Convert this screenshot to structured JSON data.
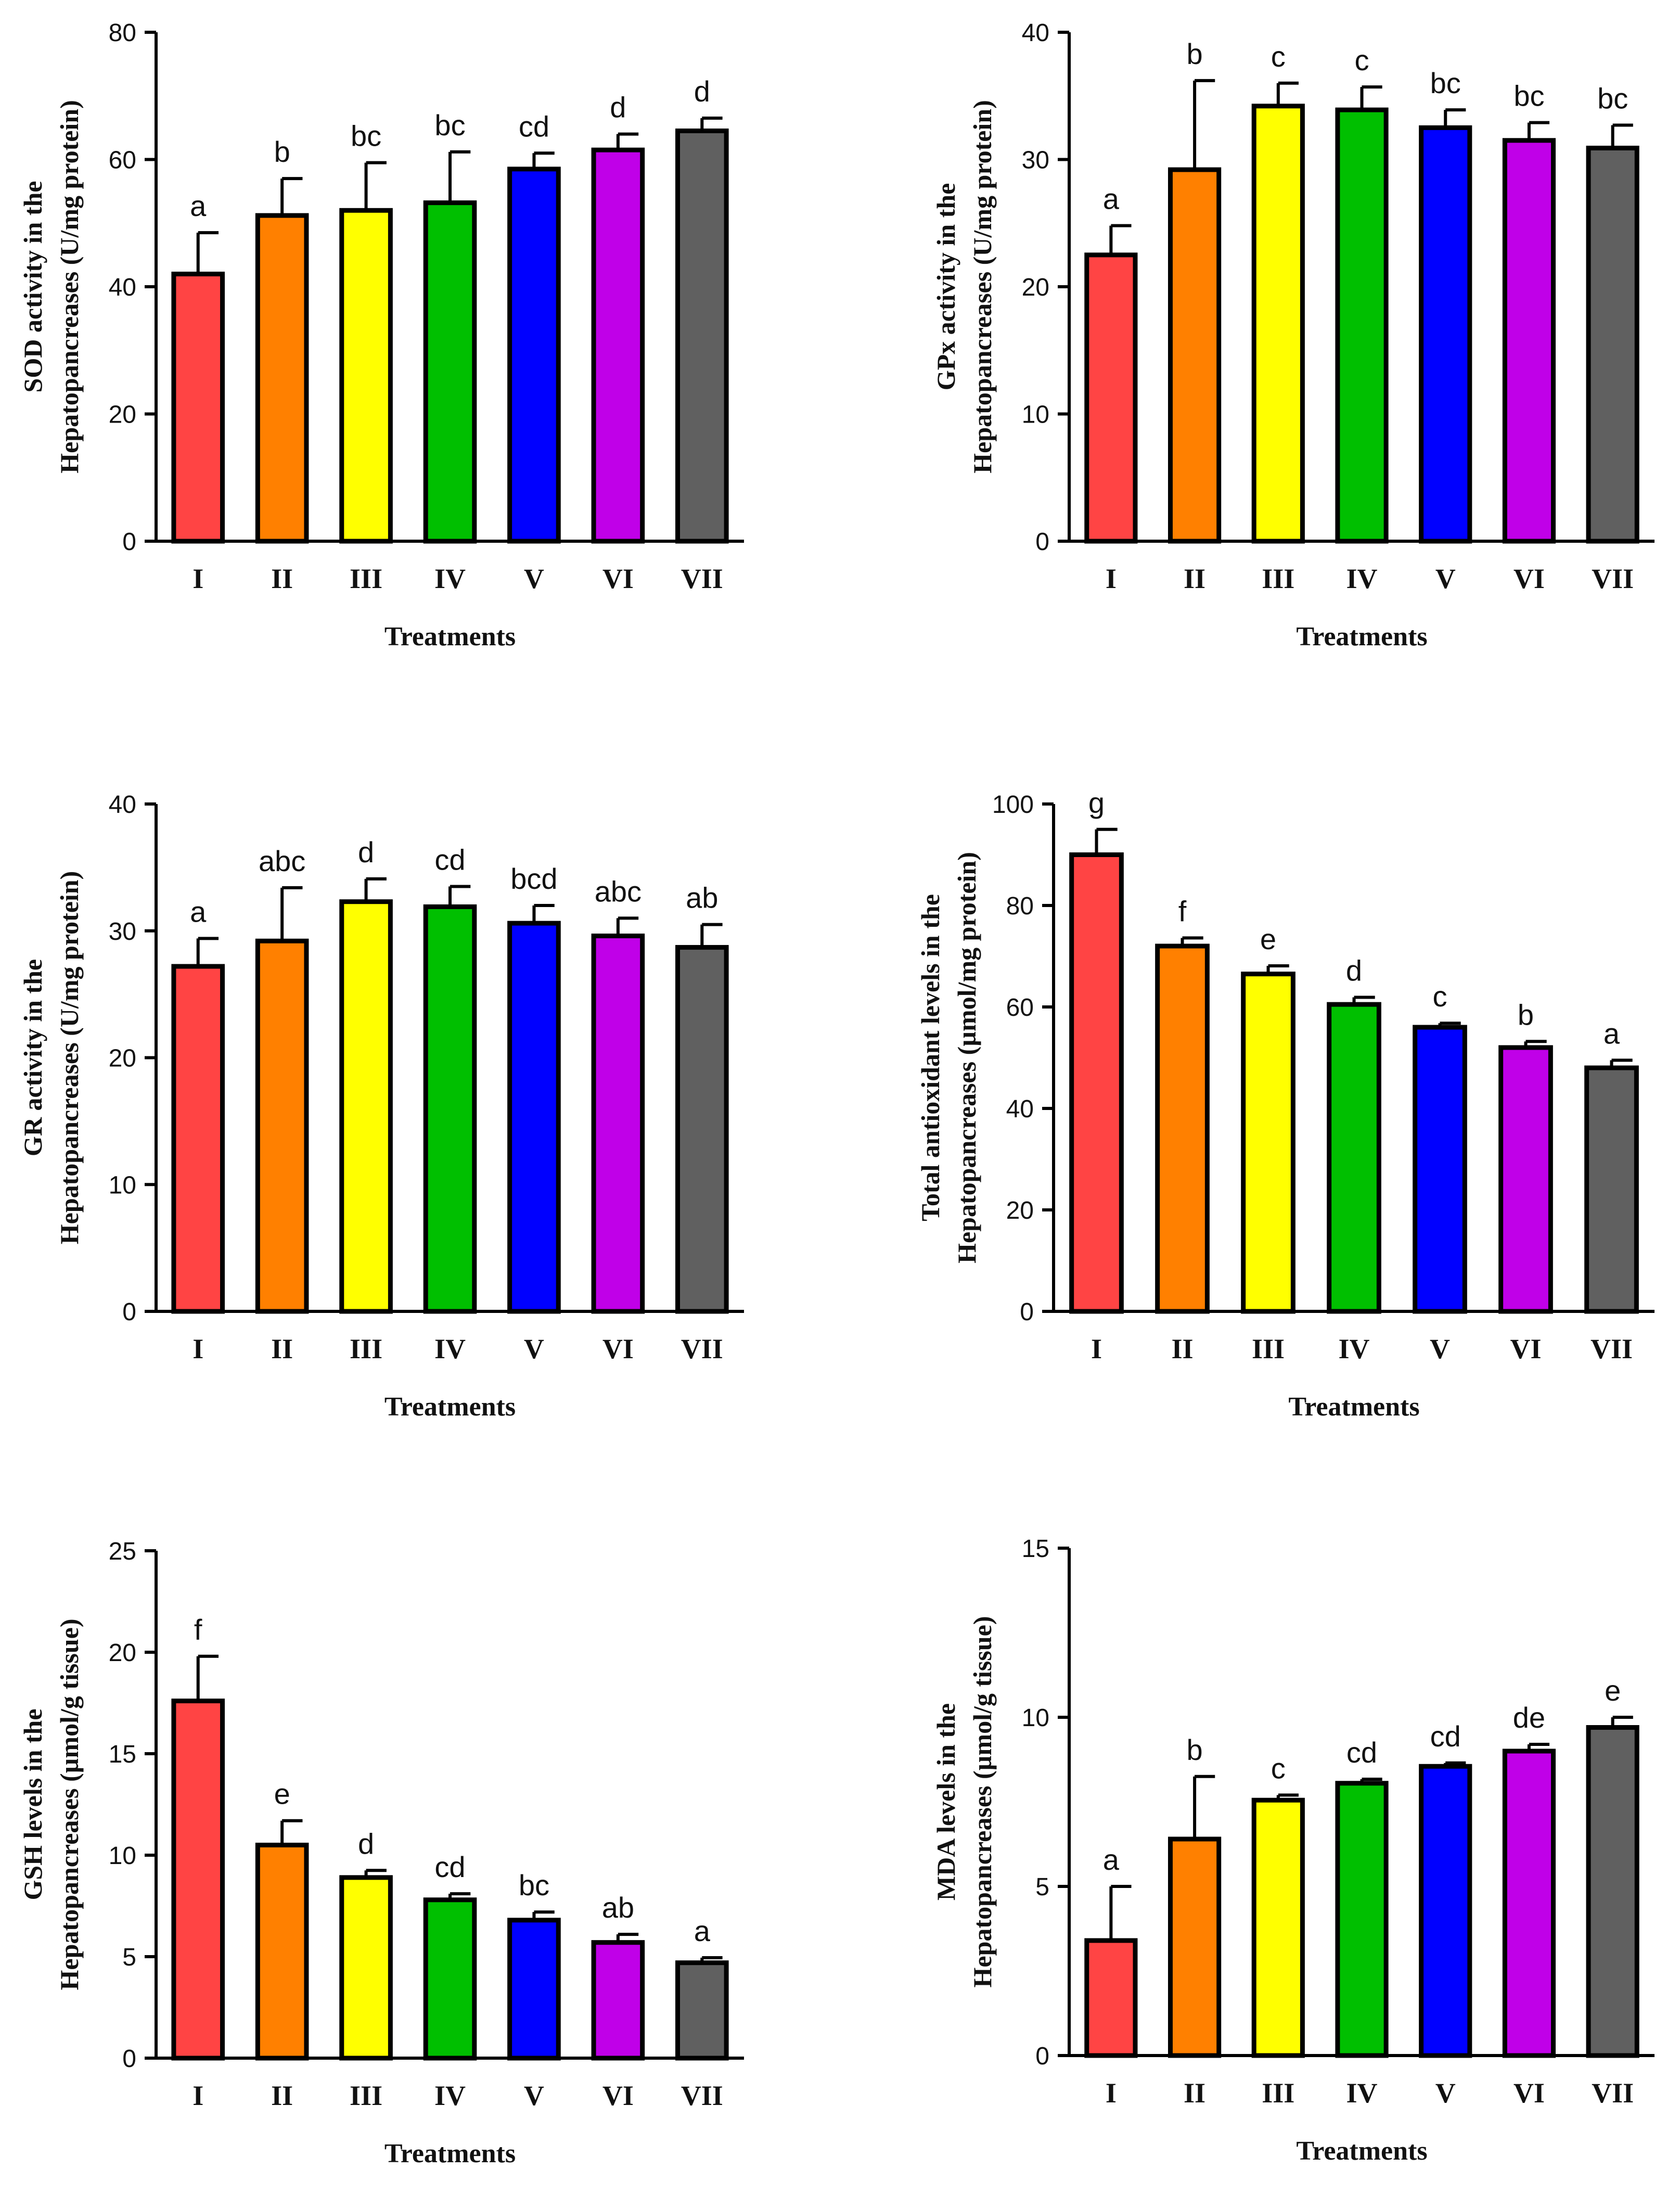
{
  "figure": {
    "panel_count": 6
  },
  "chart_data": [
    {
      "type": "bar",
      "title": "",
      "ylabel_line1": "SOD activity in the",
      "ylabel_line2": "Hepatopancreases (U/mg protein)",
      "xlabel": "Treatments",
      "categories": [
        "I",
        "II",
        "III",
        "IV",
        "V",
        "VI",
        "VII"
      ],
      "values": [
        42,
        51.2,
        52,
        53.2,
        58.5,
        61.5,
        64.5
      ],
      "errors": [
        6.5,
        5.8,
        7.5,
        8.0,
        2.5,
        2.5,
        2.0
      ],
      "letters": [
        "a",
        "b",
        "bc",
        "bc",
        "cd",
        "d",
        "d"
      ],
      "ylim": [
        0,
        80
      ],
      "yticks": [
        0,
        20,
        40,
        60,
        80
      ],
      "colors": [
        "#ff4444",
        "#ff8000",
        "#ffff00",
        "#00bf00",
        "#0000ff",
        "#c000e8",
        "#606060"
      ]
    },
    {
      "type": "bar",
      "title": "",
      "ylabel_line1": "GPx activity in the",
      "ylabel_line2": "Hepatopancreases (U/mg protein)",
      "xlabel": "Treatments",
      "categories": [
        "I",
        "II",
        "III",
        "IV",
        "V",
        "VI",
        "VII"
      ],
      "values": [
        22.5,
        29.2,
        34.2,
        33.9,
        32.5,
        31.5,
        30.9
      ],
      "errors": [
        2.3,
        7.0,
        1.8,
        1.8,
        1.4,
        1.4,
        1.8
      ],
      "letters": [
        "a",
        "b",
        "c",
        "c",
        "bc",
        "bc",
        "bc"
      ],
      "ylim": [
        0,
        40
      ],
      "yticks": [
        0,
        10,
        20,
        30,
        40
      ],
      "colors": [
        "#ff4444",
        "#ff8000",
        "#ffff00",
        "#00bf00",
        "#0000ff",
        "#c000e8",
        "#606060"
      ]
    },
    {
      "type": "bar",
      "title": "",
      "ylabel_line1": "GR activity in the",
      "ylabel_line2": "Hepatopancreases (U/mg protein)",
      "xlabel": "Treatments",
      "categories": [
        "I",
        "II",
        "III",
        "IV",
        "V",
        "VI",
        "VII"
      ],
      "values": [
        27.2,
        29.2,
        32.3,
        31.9,
        30.6,
        29.6,
        28.7
      ],
      "errors": [
        2.2,
        4.2,
        1.8,
        1.6,
        1.4,
        1.4,
        1.8
      ],
      "letters": [
        "a",
        "abc",
        "d",
        "cd",
        "bcd",
        "abc",
        "ab"
      ],
      "ylim": [
        0,
        40
      ],
      "yticks": [
        0,
        10,
        20,
        30,
        40
      ],
      "colors": [
        "#ff4444",
        "#ff8000",
        "#ffff00",
        "#00bf00",
        "#0000ff",
        "#c000e8",
        "#606060"
      ]
    },
    {
      "type": "bar",
      "title": "",
      "ylabel_line1": "Total antioxidant levels in the",
      "ylabel_line2": "Hepatopancreases (µmol/mg protein)",
      "xlabel": "Treatments",
      "categories": [
        "I",
        "II",
        "III",
        "IV",
        "V",
        "VI",
        "VII"
      ],
      "values": [
        90,
        72,
        66.5,
        60.5,
        56,
        52,
        48
      ],
      "errors": [
        5.0,
        1.6,
        1.6,
        1.4,
        0.8,
        1.2,
        1.5
      ],
      "letters": [
        "g",
        "f",
        "e",
        "d",
        "c",
        "b",
        "a"
      ],
      "ylim": [
        0,
        100
      ],
      "yticks": [
        0,
        20,
        40,
        60,
        80,
        100
      ],
      "colors": [
        "#ff4444",
        "#ff8000",
        "#ffff00",
        "#00bf00",
        "#0000ff",
        "#c000e8",
        "#606060"
      ]
    },
    {
      "type": "bar",
      "title": "",
      "ylabel_line1": "GSH levels in the",
      "ylabel_line2": "Hepatopancreases (µmol/g tissue)",
      "xlabel": "Treatments",
      "categories": [
        "I",
        "II",
        "III",
        "IV",
        "V",
        "VI",
        "VII"
      ],
      "values": [
        17.6,
        10.5,
        8.9,
        7.8,
        6.8,
        5.7,
        4.7
      ],
      "errors": [
        2.2,
        1.2,
        0.35,
        0.3,
        0.4,
        0.4,
        0.25
      ],
      "letters": [
        "f",
        "e",
        "d",
        "cd",
        "bc",
        "ab",
        "a"
      ],
      "ylim": [
        0,
        25
      ],
      "yticks": [
        0,
        5,
        10,
        15,
        20,
        25
      ],
      "colors": [
        "#ff4444",
        "#ff8000",
        "#ffff00",
        "#00bf00",
        "#0000ff",
        "#c000e8",
        "#606060"
      ]
    },
    {
      "type": "bar",
      "title": "",
      "ylabel_line1": "MDA levels in the",
      "ylabel_line2": "Hepatopancreases (µmol/g tissue)",
      "xlabel": "Treatments",
      "categories": [
        "I",
        "II",
        "III",
        "IV",
        "V",
        "VI",
        "VII"
      ],
      "values": [
        3.4,
        6.4,
        7.55,
        8.05,
        8.55,
        9.0,
        9.7
      ],
      "errors": [
        1.6,
        1.85,
        0.15,
        0.12,
        0.1,
        0.2,
        0.3
      ],
      "letters": [
        "a",
        "b",
        "c",
        "cd",
        "cd",
        "de",
        "e"
      ],
      "ylim": [
        0,
        15
      ],
      "yticks": [
        0,
        5,
        10,
        15
      ],
      "colors": [
        "#ff4444",
        "#ff8000",
        "#ffff00",
        "#00bf00",
        "#0000ff",
        "#c000e8",
        "#606060"
      ]
    }
  ]
}
